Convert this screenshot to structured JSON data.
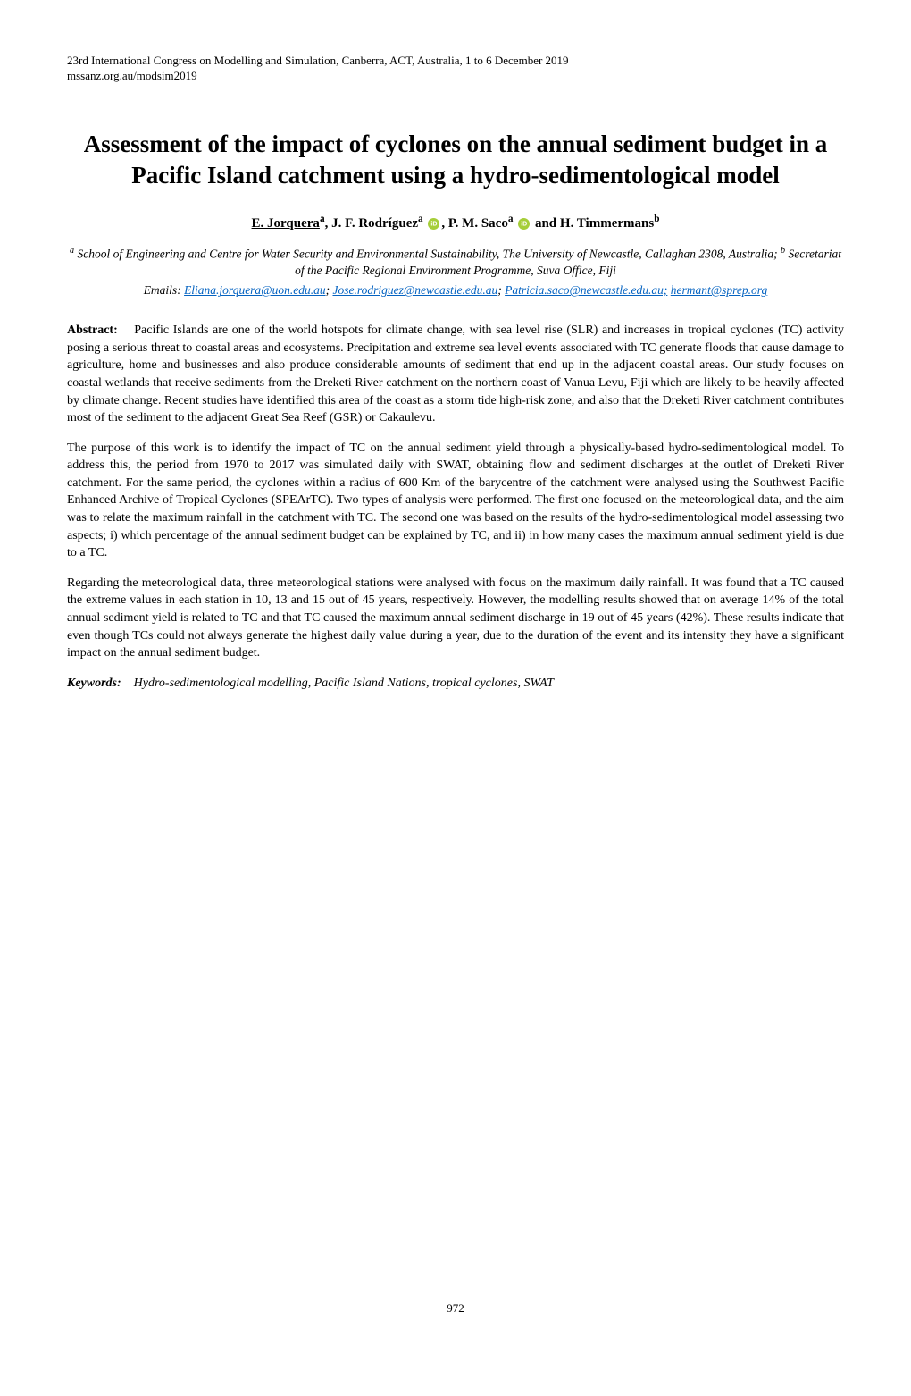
{
  "header": {
    "line1": "23rd International Congress on Modelling and Simulation, Canberra, ACT, Australia, 1 to 6 December 2019",
    "line2": "mssanz.org.au/modsim2019"
  },
  "title": "Assessment of the impact of cyclones on the annual sediment budget in a Pacific Island catchment using a hydro-sedimentological model",
  "authors": {
    "presenting": "E. Jorquera",
    "presenting_sup": "a",
    "a2_name": ", J. F. Rodríguez",
    "a2_sup": "a",
    "a3_name": ", P. M. Saco",
    "a3_sup": "a",
    "a4_name": " and H. Timmermans",
    "a4_sup": "b"
  },
  "affiliations": {
    "text": "a School of Engineering and Centre for Water Security and Environmental Sustainability, The University of Newcastle, Callaghan 2308, Australia; b Secretariat of the Pacific Regional Environment Programme, Suva Office, Fiji"
  },
  "emails": {
    "prefix": "Emails: ",
    "e1": "Eliana.jorquera@uon.edu.au",
    "sep1": "; ",
    "e2": "Jose.rodriguez@newcastle.edu.au",
    "sep2": "; ",
    "e3": "Patricia.saco@newcastle.edu.au;",
    "e4": "hermant@sprep.org"
  },
  "abstract": {
    "label": "Abstract:",
    "p1": "Pacific Islands are one of the world hotspots for climate change, with sea level rise (SLR) and increases in tropical cyclones (TC) activity posing a serious threat to coastal areas and ecosystems. Precipitation and extreme sea level events associated with TC generate floods that cause damage to agriculture, home and businesses and also produce considerable amounts of sediment that end up in the adjacent coastal areas. Our study focuses on coastal wetlands that receive sediments from the Dreketi River catchment on the northern coast of Vanua Levu, Fiji which are likely to be heavily affected by climate change. Recent studies have identified this area of the coast as a storm tide high-risk zone, and also that the Dreketi River catchment contributes most of the sediment to the adjacent Great Sea Reef (GSR) or Cakaulevu.",
    "p2": "The purpose of this work is to identify the impact of TC on the annual sediment yield through a physically-based hydro-sedimentological model. To address this, the period from 1970 to 2017 was simulated daily with SWAT, obtaining flow and sediment discharges at the outlet of Dreketi River catchment. For the same period, the cyclones within a radius of 600 Km of the barycentre of the catchment were analysed using the Southwest Pacific Enhanced Archive of Tropical Cyclones (SPEArTC). Two types of analysis were performed. The first one focused on the meteorological data, and the aim was to relate the maximum rainfall in the catchment with TC. The second one was based on the results of the hydro-sedimentological model assessing two aspects; i) which percentage of the annual sediment budget can be explained by TC, and ii) in how many cases the maximum annual sediment yield is due to a TC.",
    "p3": "Regarding the meteorological data, three meteorological stations were analysed with focus on the maximum daily rainfall. It was found that a TC caused the extreme values in each station in 10, 13 and 15 out of 45 years, respectively. However, the modelling results showed that on average 14% of the total annual sediment yield is related to TC and that TC caused the maximum annual sediment discharge in 19 out of 45 years (42%). These results indicate that even though TCs could not always generate the highest daily value during a year, due to the duration of the event and its intensity they have a significant impact on the annual sediment budget."
  },
  "keywords": {
    "label": "Keywords:",
    "text": "Hydro-sedimentological modelling, Pacific Island Nations, tropical cyclones, SWAT"
  },
  "page_number": "972",
  "colors": {
    "link": "#0563c1",
    "orcid": "#a6ce39",
    "text": "#000000",
    "background": "#ffffff"
  }
}
